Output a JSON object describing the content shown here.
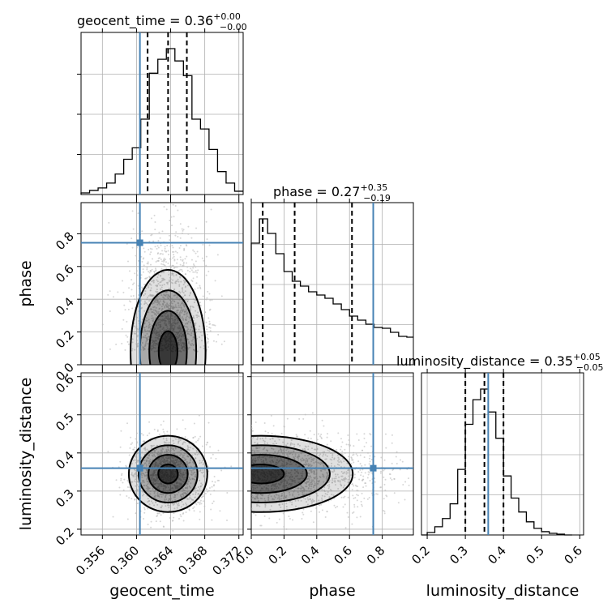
{
  "chart_data": {
    "type": "corner",
    "parameters": [
      "geocent_time",
      "phase",
      "luminosity_distance"
    ],
    "truths": {
      "geocent_time": 0.3604,
      "phase": 0.745,
      "luminosity_distance": 0.36
    },
    "ranges": {
      "geocent_time": [
        0.3535,
        0.3725
      ],
      "phase": [
        0.0,
        0.99
      ],
      "luminosity_distance": [
        0.185,
        0.61
      ]
    },
    "ticks": {
      "geocent_time": [
        "0.356",
        "0.360",
        "0.364",
        "0.368",
        "0.372"
      ],
      "phase": [
        "0.0",
        "0.2",
        "0.4",
        "0.6",
        "0.8"
      ],
      "luminosity_distance": [
        "0.2",
        "0.3",
        "0.4",
        "0.5",
        "0.6"
      ],
      "phase_y": [
        "0.0",
        "0.2",
        "0.4",
        "0.6",
        "0.8"
      ],
      "luminosity_distance_y": [
        "0.2",
        "0.3",
        "0.4",
        "0.5",
        "0.6"
      ]
    },
    "titles": [
      {
        "param": "geocent_time",
        "text": "geocent_time = 0.36",
        "plus": "+0.00",
        "minus": "−0.00"
      },
      {
        "param": "phase",
        "text": "phase = 0.27",
        "plus": "+0.35",
        "minus": "−0.19"
      },
      {
        "param": "luminosity_distance",
        "text": "luminosity_distance = 0.35",
        "plus": "+0.05",
        "minus": "−0.05"
      }
    ],
    "quantiles": {
      "geocent_time": [
        0.3613,
        0.3637,
        0.3659
      ],
      "phase": [
        0.07,
        0.265,
        0.615
      ],
      "luminosity_distance": [
        0.3,
        0.35,
        0.4
      ]
    },
    "histograms": {
      "geocent_time": {
        "edges": [
          0.3535,
          0.3545,
          0.3555,
          0.3565,
          0.3575,
          0.3585,
          0.3595,
          0.3605,
          0.3615,
          0.3625,
          0.3635,
          0.3645,
          0.3655,
          0.3665,
          0.3675,
          0.3685,
          0.3695,
          0.3705,
          0.3715,
          0.3725
        ],
        "counts": [
          2,
          5,
          8,
          14,
          25,
          43,
          57,
          92,
          148,
          165,
          178,
          163,
          145,
          92,
          80,
          55,
          28,
          14,
          4
        ]
      },
      "phase": {
        "edges": [
          0.0,
          0.05,
          0.1,
          0.15,
          0.2,
          0.25,
          0.3,
          0.35,
          0.4,
          0.45,
          0.5,
          0.55,
          0.6,
          0.65,
          0.7,
          0.75,
          0.8,
          0.85,
          0.9,
          0.95,
          0.99
        ],
        "counts": [
          150,
          180,
          162,
          137,
          115,
          103,
          97,
          90,
          86,
          82,
          75,
          68,
          60,
          55,
          50,
          46,
          45,
          40,
          35,
          34
        ]
      },
      "luminosity_distance": {
        "edges": [
          0.185,
          0.2,
          0.22,
          0.24,
          0.26,
          0.28,
          0.3,
          0.32,
          0.34,
          0.36,
          0.38,
          0.4,
          0.42,
          0.44,
          0.46,
          0.48,
          0.5,
          0.52,
          0.54,
          0.56,
          0.58
        ],
        "counts": [
          0,
          3,
          10,
          20,
          38,
          80,
          135,
          165,
          178,
          150,
          118,
          72,
          45,
          28,
          16,
          8,
          4,
          2,
          1,
          0
        ]
      }
    },
    "joint": [
      {
        "x": "geocent_time",
        "y": "phase",
        "center": [
          0.3637,
          0.08
        ],
        "spread": [
          0.0022,
          0.25
        ],
        "samples": 1400
      },
      {
        "x": "geocent_time",
        "y": "luminosity_distance",
        "center": [
          0.3637,
          0.345
        ],
        "spread": [
          0.0023,
          0.05
        ],
        "samples": 1400
      },
      {
        "x": "phase",
        "y": "luminosity_distance",
        "center": [
          0.06,
          0.345
        ],
        "spread": [
          0.28,
          0.05
        ],
        "samples": 1400
      }
    ],
    "colors": {
      "truth": "#4682b4",
      "hist": "#000000",
      "density": "#000000",
      "points": "#bdbdbd"
    },
    "grid": true
  }
}
